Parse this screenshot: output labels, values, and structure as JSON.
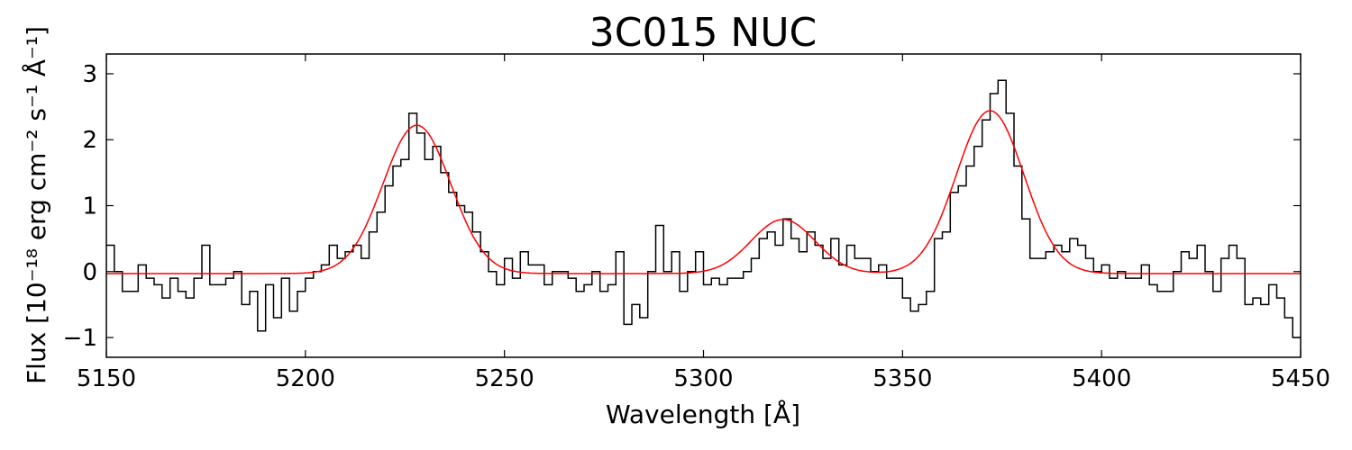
{
  "chart_data": {
    "type": "line",
    "title": "3C015 NUC",
    "xlabel": "Wavelength [Å]",
    "ylabel": "Flux [10⁻¹⁸ erg cm⁻² s⁻¹ Å⁻¹]",
    "xlim": [
      5150,
      5450
    ],
    "ylim": [
      -1.3,
      3.3
    ],
    "x_ticks": [
      5150,
      5200,
      5250,
      5300,
      5350,
      5400,
      5450
    ],
    "y_ticks": [
      -1,
      0,
      1,
      2,
      3
    ],
    "grid": false,
    "legend": "none",
    "series": [
      {
        "style": "step",
        "color": "#000000",
        "x": [
          5150,
          5152,
          5154,
          5156,
          5158,
          5160,
          5162,
          5164,
          5166,
          5168,
          5170,
          5172,
          5174,
          5176,
          5178,
          5180,
          5182,
          5184,
          5186,
          5188,
          5190,
          5192,
          5194,
          5196,
          5198,
          5200,
          5202,
          5204,
          5206,
          5208,
          5210,
          5212,
          5214,
          5216,
          5218,
          5220,
          5222,
          5224,
          5226,
          5228,
          5230,
          5232,
          5234,
          5236,
          5238,
          5240,
          5242,
          5244,
          5246,
          5248,
          5250,
          5252,
          5254,
          5256,
          5258,
          5260,
          5262,
          5264,
          5266,
          5268,
          5270,
          5272,
          5274,
          5276,
          5278,
          5280,
          5282,
          5284,
          5286,
          5288,
          5290,
          5292,
          5294,
          5296,
          5298,
          5300,
          5302,
          5304,
          5306,
          5308,
          5310,
          5312,
          5314,
          5316,
          5318,
          5320,
          5322,
          5324,
          5326,
          5328,
          5330,
          5332,
          5334,
          5336,
          5338,
          5340,
          5342,
          5344,
          5346,
          5348,
          5350,
          5352,
          5354,
          5356,
          5358,
          5360,
          5362,
          5364,
          5366,
          5368,
          5370,
          5372,
          5374,
          5376,
          5378,
          5380,
          5382,
          5384,
          5386,
          5388,
          5390,
          5392,
          5394,
          5396,
          5398,
          5400,
          5402,
          5404,
          5406,
          5408,
          5410,
          5412,
          5414,
          5416,
          5418,
          5420,
          5422,
          5424,
          5426,
          5428,
          5430,
          5432,
          5434,
          5436,
          5438,
          5440,
          5442,
          5444,
          5446,
          5448
        ],
        "y": [
          0.4,
          0.0,
          -0.3,
          -0.3,
          0.1,
          -0.1,
          -0.2,
          -0.4,
          -0.1,
          -0.3,
          -0.4,
          -0.1,
          0.4,
          -0.2,
          -0.2,
          -0.1,
          0.0,
          -0.5,
          -0.3,
          -0.9,
          -0.2,
          -0.7,
          -0.1,
          -0.6,
          -0.3,
          -0.1,
          0.0,
          0.1,
          0.4,
          0.2,
          0.3,
          0.4,
          0.2,
          0.6,
          0.9,
          1.3,
          1.6,
          1.7,
          2.4,
          2.1,
          1.7,
          1.9,
          1.5,
          1.2,
          1.0,
          0.9,
          0.6,
          0.3,
          0.0,
          -0.2,
          0.2,
          -0.1,
          0.3,
          0.1,
          0.1,
          -0.2,
          0.0,
          0.0,
          -0.1,
          -0.3,
          -0.2,
          0.0,
          -0.3,
          -0.2,
          0.3,
          -0.8,
          -0.5,
          -0.7,
          0.0,
          0.7,
          0.0,
          0.3,
          -0.3,
          0.0,
          0.3,
          -0.2,
          -0.1,
          -0.2,
          -0.1,
          -0.1,
          0.0,
          0.2,
          0.5,
          0.6,
          0.4,
          0.8,
          0.5,
          0.3,
          0.6,
          0.4,
          0.2,
          0.5,
          0.1,
          0.4,
          0.2,
          0.2,
          0.0,
          0.1,
          -0.1,
          -0.1,
          -0.4,
          -0.6,
          -0.5,
          -0.3,
          0.5,
          0.6,
          1.2,
          1.3,
          1.6,
          1.9,
          2.3,
          2.7,
          2.9,
          2.4,
          1.6,
          0.8,
          0.2,
          0.2,
          0.3,
          0.4,
          0.3,
          0.5,
          0.4,
          0.2,
          0.0,
          0.1,
          -0.1,
          0.0,
          -0.1,
          -0.1,
          0.1,
          -0.2,
          -0.3,
          -0.3,
          0.0,
          0.3,
          0.2,
          0.4,
          0.0,
          -0.3,
          0.2,
          0.4,
          0.2,
          -0.5,
          -0.4,
          -0.5,
          -0.2,
          -0.4,
          -0.7,
          -1.0
        ],
        "x_end": 5450
      },
      {
        "style": "line",
        "color": "#ff0000",
        "components": [
          {
            "center": 5228,
            "amplitude": 2.25,
            "sigma": 8.5
          },
          {
            "center": 5320,
            "amplitude": 0.82,
            "sigma": 8.0
          },
          {
            "center": 5372,
            "amplitude": 2.47,
            "sigma": 8.5
          }
        ],
        "baseline": -0.03
      }
    ]
  }
}
